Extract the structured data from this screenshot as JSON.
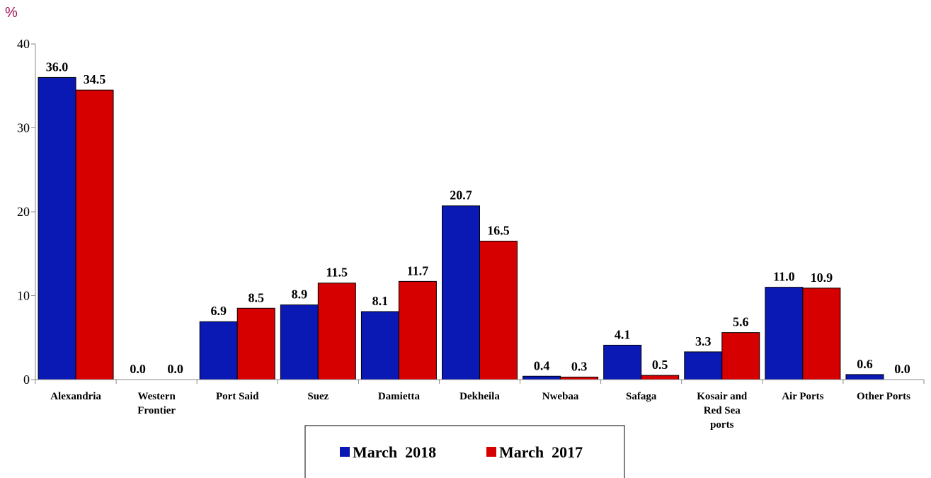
{
  "chart_data": {
    "type": "bar",
    "unit_label": "%",
    "categories": [
      "Alexandria",
      "Western Frontier",
      "Port Said",
      "Suez",
      "Damietta",
      "Dekheila",
      "Nwebaa",
      "Safaga",
      "Kosair and Red Sea ports",
      "Air Ports",
      "Other Ports"
    ],
    "category_lines": [
      [
        "Alexandria"
      ],
      [
        "Western",
        "Frontier"
      ],
      [
        "Port Said"
      ],
      [
        "Suez"
      ],
      [
        "Damietta"
      ],
      [
        "Dekheila"
      ],
      [
        "Nwebaa"
      ],
      [
        "Safaga"
      ],
      [
        "Kosair and",
        "Red Sea",
        "ports"
      ],
      [
        "Air Ports"
      ],
      [
        "Other Ports"
      ]
    ],
    "series": [
      {
        "name": "March  2018",
        "color": "#0a18b4",
        "values": [
          36.0,
          0.0,
          6.9,
          8.9,
          8.1,
          20.7,
          0.4,
          4.1,
          3.3,
          11.0,
          0.6
        ]
      },
      {
        "name": "March  2017",
        "color": "#d60000",
        "values": [
          34.5,
          0.0,
          8.5,
          11.5,
          11.7,
          16.5,
          0.3,
          0.5,
          5.6,
          10.9,
          0.0
        ]
      }
    ],
    "ylim": [
      0,
      40
    ],
    "yticks": [
      0,
      10,
      20,
      30,
      40
    ],
    "grid": false,
    "legend_position": "bottom-center"
  }
}
